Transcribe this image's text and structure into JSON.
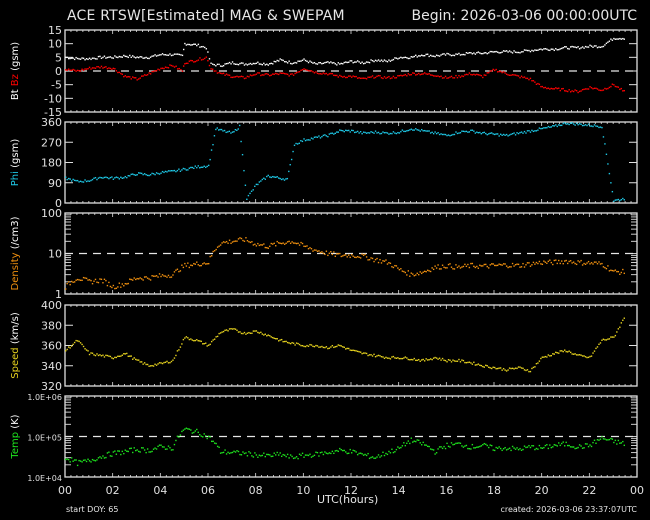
{
  "header": {
    "title": "ACE RTSW[Estimated] MAG & SWEPAM",
    "begin": "Begin: 2026-03-06 00:00:00UTC"
  },
  "footer": {
    "xlabel": "UTC(hours)",
    "start_doy": "start DOY:  65",
    "created": "created: 2026-03-06 23:37:07UTC"
  },
  "colors": {
    "background": "#000000",
    "axes": "#e0e0e0",
    "bt": "#ffffff",
    "bz": "#ff0000",
    "phi": "#1ec8e6",
    "density": "#f0900f",
    "speed": "#e6d21e",
    "temp": "#1ee61e"
  },
  "chart_data": [
    {
      "type": "scatter",
      "panel": "mag",
      "ylabel": "Bt  Bz  (gsm)",
      "ylabel_parts": [
        {
          "text": "Bt",
          "color": "#ffffff"
        },
        {
          "text": "Bz",
          "color": "#ff0000"
        },
        {
          "text": "(gsm)",
          "color": "#ffffff"
        }
      ],
      "ylim": [
        -15,
        15
      ],
      "yticks": [
        -15,
        -10,
        -5,
        0,
        5,
        10,
        15
      ],
      "ytick_labels": [
        "-15",
        "-10",
        "-5",
        "0",
        "5",
        "10",
        "15"
      ],
      "reference_line": 0,
      "x": [
        0,
        0.5,
        1,
        1.5,
        2,
        2.5,
        3,
        3.5,
        4,
        4.5,
        4.9,
        5.0,
        5.5,
        5.9,
        6.1,
        6.5,
        7,
        7.5,
        8,
        8.5,
        9,
        9.5,
        10,
        10.5,
        11,
        11.5,
        12,
        12.5,
        13,
        13.5,
        14,
        14.5,
        15,
        15.5,
        16,
        16.5,
        17,
        17.5,
        18,
        18.5,
        19,
        19.5,
        20,
        20.5,
        21,
        21.5,
        22,
        22.5,
        23,
        23.5
      ],
      "series": [
        {
          "name": "Bt",
          "color": "#ffffff",
          "values": [
            5,
            4.5,
            4.5,
            5,
            5,
            5.5,
            5,
            5,
            6,
            6,
            5.5,
            10,
            9.5,
            8.5,
            2.5,
            2,
            3,
            2.5,
            3,
            2.5,
            4,
            3,
            4,
            2.5,
            3,
            2.5,
            3.5,
            3,
            4,
            3.5,
            5,
            5,
            6,
            5.5,
            6,
            6,
            6.5,
            6.5,
            7,
            7,
            7,
            7.5,
            8,
            8,
            8.5,
            8.5,
            9,
            9,
            12,
            12
          ]
        },
        {
          "name": "Bz",
          "color": "#ff0000",
          "values": [
            0.5,
            0,
            1,
            1.5,
            1,
            -2,
            -3,
            -1,
            1,
            2,
            0,
            3,
            4,
            5,
            1,
            -1,
            -2,
            -2.5,
            -1,
            -1.5,
            -1,
            -1.5,
            1,
            -0.5,
            -1,
            -2,
            -2,
            -3,
            -2,
            -2.5,
            -2,
            -1,
            -1,
            -1.5,
            -2.5,
            -2,
            -1,
            -2,
            0.5,
            -1,
            -2,
            -3,
            -6,
            -6.5,
            -7,
            -7.5,
            -6,
            -7,
            -5,
            -8
          ]
        }
      ]
    },
    {
      "type": "scatter",
      "panel": "phi",
      "ylabel": "Phi (gsm)",
      "ylim": [
        0,
        360
      ],
      "yticks": [
        0,
        90,
        180,
        270,
        360
      ],
      "ytick_labels": [
        "0",
        "90",
        "180",
        "270",
        "360"
      ],
      "x": [
        0,
        0.5,
        1,
        1.5,
        2,
        2.5,
        3,
        3.5,
        4,
        4.5,
        5,
        5.5,
        6,
        6.3,
        6.6,
        7,
        7.3,
        7.6,
        8,
        8.5,
        9,
        9.3,
        9.6,
        10,
        10.5,
        11,
        11.5,
        12,
        12.5,
        13,
        13.5,
        14,
        14.5,
        15,
        15.5,
        16,
        16.5,
        17,
        17.5,
        18,
        18.5,
        19,
        19.5,
        20,
        20.5,
        21,
        21.5,
        22,
        22.5,
        23,
        23.5
      ],
      "series": [
        {
          "name": "Phi",
          "color": "#1ec8e6",
          "values": [
            110,
            95,
            100,
            115,
            110,
            115,
            130,
            125,
            135,
            140,
            150,
            160,
            165,
            330,
            320,
            310,
            340,
            20,
            80,
            120,
            110,
            105,
            260,
            280,
            290,
            300,
            320,
            320,
            310,
            315,
            310,
            315,
            330,
            320,
            310,
            300,
            315,
            320,
            310,
            305,
            300,
            310,
            320,
            330,
            340,
            355,
            350,
            345,
            340,
            10,
            20
          ]
        }
      ]
    },
    {
      "type": "scatter",
      "panel": "density",
      "ylabel": "Density (/cm3)",
      "yscale": "log",
      "ylim": [
        1,
        100
      ],
      "yticks": [
        1,
        10,
        100
      ],
      "ytick_labels": [
        "1",
        "10",
        "100"
      ],
      "reference_line": 10,
      "x": [
        0,
        0.5,
        1,
        1.5,
        2,
        2.5,
        3,
        3.5,
        4,
        4.5,
        5,
        5.5,
        6,
        6.5,
        7,
        7.5,
        8,
        8.5,
        9,
        9.5,
        10,
        10.5,
        11,
        11.5,
        12,
        12.5,
        13,
        13.5,
        14,
        14.5,
        15,
        15.5,
        16,
        16.5,
        17,
        17.5,
        18,
        18.5,
        19,
        19.5,
        20,
        20.5,
        21,
        21.5,
        22,
        22.5,
        23,
        23.5
      ],
      "series": [
        {
          "name": "Density",
          "color": "#f0900f",
          "values": [
            1.5,
            2.5,
            2,
            2.2,
            1.5,
            1.8,
            2.5,
            2.5,
            2.8,
            3,
            5,
            5.5,
            6,
            18,
            20,
            22,
            17,
            15,
            18,
            20,
            15,
            12,
            10,
            9,
            9,
            8.5,
            7,
            6,
            4,
            3,
            3.5,
            4.5,
            5,
            4.5,
            5,
            4.8,
            5,
            5.2,
            5,
            5.5,
            6,
            6,
            6.5,
            6,
            5.8,
            5.5,
            3.5,
            3.5
          ]
        }
      ]
    },
    {
      "type": "scatter",
      "panel": "speed",
      "ylabel": "Speed (km/s)",
      "ylim": [
        320,
        400
      ],
      "yticks": [
        320,
        340,
        360,
        380,
        400
      ],
      "ytick_labels": [
        "320",
        "340",
        "360",
        "380",
        "400"
      ],
      "x": [
        0,
        0.5,
        1,
        1.5,
        2,
        2.5,
        3,
        3.5,
        4,
        4.5,
        5,
        5.5,
        6,
        6.5,
        7,
        7.5,
        8,
        8.5,
        9,
        9.5,
        10,
        10.5,
        11,
        11.5,
        12,
        12.5,
        13,
        13.5,
        14,
        14.5,
        15,
        15.5,
        16,
        16.5,
        17,
        17.5,
        18,
        18.5,
        19,
        19.5,
        20,
        20.5,
        21,
        21.5,
        22,
        22.5,
        23,
        23.5
      ],
      "series": [
        {
          "name": "Speed",
          "color": "#e6d21e",
          "values": [
            355,
            365,
            352,
            350,
            348,
            352,
            345,
            340,
            342,
            345,
            368,
            365,
            360,
            373,
            376,
            372,
            374,
            370,
            365,
            362,
            360,
            360,
            358,
            360,
            355,
            352,
            350,
            348,
            348,
            347,
            345,
            348,
            345,
            345,
            343,
            340,
            338,
            336,
            338,
            335,
            348,
            352,
            355,
            350,
            348,
            365,
            368,
            390
          ]
        }
      ]
    },
    {
      "type": "scatter",
      "panel": "temp",
      "ylabel": "Temp (K)",
      "yscale": "log",
      "ylim": [
        10000,
        1000000
      ],
      "yticks": [
        10000,
        100000,
        1000000
      ],
      "ytick_labels": [
        "1.0E+04",
        "1.0E+05",
        "1.0E+06"
      ],
      "reference_line": 100000,
      "x": [
        0,
        0.5,
        1,
        1.5,
        2,
        2.5,
        3,
        3.5,
        4,
        4.5,
        5,
        5.5,
        6,
        6.5,
        7,
        7.5,
        8,
        8.5,
        9,
        9.5,
        10,
        10.5,
        11,
        11.5,
        12,
        12.5,
        13,
        13.5,
        14,
        14.5,
        15,
        15.5,
        16,
        16.5,
        17,
        17.5,
        18,
        18.5,
        19,
        19.5,
        20,
        20.5,
        21,
        21.5,
        22,
        22.5,
        23,
        23.5
      ],
      "series": [
        {
          "name": "Temp",
          "color": "#1ee61e",
          "values": [
            30000,
            22000,
            25000,
            32000,
            38000,
            42000,
            48000,
            45000,
            55000,
            52000,
            150000,
            130000,
            95000,
            42000,
            40000,
            38000,
            35000,
            33000,
            36000,
            30000,
            34000,
            36000,
            40000,
            45000,
            42000,
            35000,
            30000,
            40000,
            50000,
            80000,
            65000,
            42000,
            60000,
            65000,
            55000,
            60000,
            50000,
            52000,
            48000,
            55000,
            52000,
            60000,
            65000,
            55000,
            60000,
            90000,
            75000,
            65000
          ]
        }
      ]
    }
  ],
  "xaxis": {
    "xlim": [
      0,
      24
    ],
    "tick_labels": [
      "00",
      "02",
      "04",
      "06",
      "08",
      "10",
      "12",
      "14",
      "16",
      "18",
      "20",
      "22",
      "00"
    ]
  }
}
